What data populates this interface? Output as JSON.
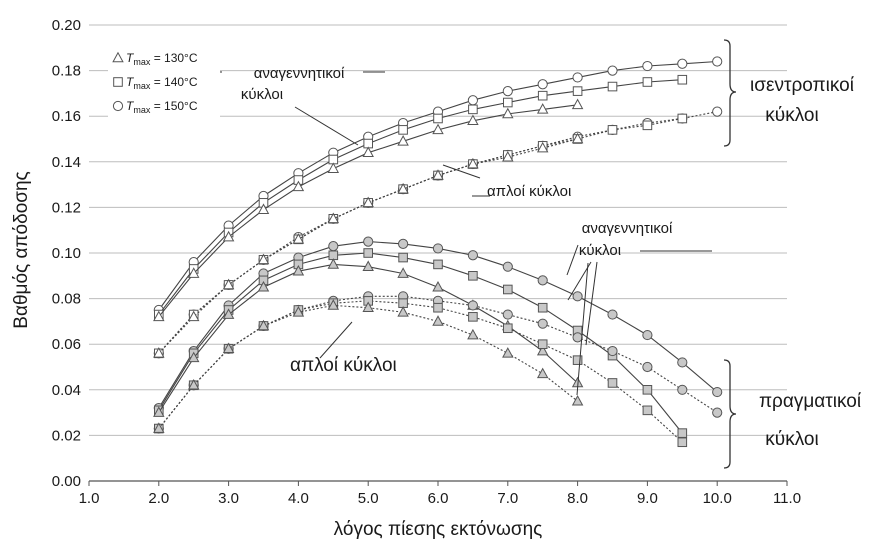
{
  "chart_data": {
    "type": "line",
    "xlabel": "λόγος πίεσης εκτόνωσης",
    "ylabel": "Βαθμός απόδοσης",
    "xlim": [
      1.0,
      11.0
    ],
    "ylim": [
      0.0,
      0.2
    ],
    "x_ticks": [
      "1.0",
      "2.0",
      "3.0",
      "4.0",
      "5.0",
      "6.0",
      "7.0",
      "8.0",
      "9.0",
      "10.0",
      "11.0"
    ],
    "y_ticks": [
      "0.00",
      "0.02",
      "0.04",
      "0.06",
      "0.08",
      "0.10",
      "0.12",
      "0.14",
      "0.16",
      "0.18",
      "0.20"
    ],
    "grid": "horizontal",
    "legend": {
      "position": "top-left",
      "entries": [
        {
          "marker": "triangle",
          "prefix": "T",
          "sub": "max",
          "value": " = 130°C"
        },
        {
          "marker": "square",
          "prefix": "T",
          "sub": "max",
          "value": " = 140°C"
        },
        {
          "marker": "circle",
          "prefix": "T",
          "sub": "max",
          "value": " = 150°C"
        }
      ]
    },
    "annotations": {
      "isentropic_regen": [
        "αναγεννητικοί",
        "κύκλοι"
      ],
      "isentropic_simple": "απλοί κύκλοι",
      "isentropic_group": [
        "ισεντροπικοί",
        "κύκλοι"
      ],
      "real_regen": [
        "αναγεννητικοί",
        "κύκλοι"
      ],
      "real_simple": "απλοί κύκλοι",
      "real_group": [
        "πραγματικοί",
        "κύκλοι"
      ]
    },
    "series": [
      {
        "group": "isentropic-regenerative",
        "marker": "circle",
        "style": "solid",
        "x": [
          2.0,
          2.5,
          3.0,
          3.5,
          4.0,
          4.5,
          5.0,
          5.5,
          6.0,
          6.5,
          7.0,
          7.5,
          8.0,
          8.5,
          9.0,
          9.5,
          10.0
        ],
        "y": [
          0.075,
          0.096,
          0.112,
          0.125,
          0.135,
          0.144,
          0.151,
          0.157,
          0.162,
          0.167,
          0.171,
          0.174,
          0.177,
          0.18,
          0.182,
          0.183,
          0.184
        ]
      },
      {
        "group": "isentropic-regenerative",
        "marker": "square",
        "style": "solid",
        "x": [
          2.0,
          2.5,
          3.0,
          3.5,
          4.0,
          4.5,
          5.0,
          5.5,
          6.0,
          6.5,
          7.0,
          7.5,
          8.0,
          8.5,
          9.0,
          9.5
        ],
        "y": [
          0.073,
          0.093,
          0.109,
          0.122,
          0.132,
          0.141,
          0.148,
          0.154,
          0.159,
          0.163,
          0.166,
          0.169,
          0.171,
          0.173,
          0.175,
          0.176
        ]
      },
      {
        "group": "isentropic-regenerative",
        "marker": "triangle",
        "style": "solid",
        "x": [
          2.0,
          2.5,
          3.0,
          3.5,
          4.0,
          4.5,
          5.0,
          5.5,
          6.0,
          6.5,
          7.0,
          7.5,
          8.0
        ],
        "y": [
          0.072,
          0.091,
          0.107,
          0.119,
          0.129,
          0.137,
          0.144,
          0.149,
          0.154,
          0.158,
          0.161,
          0.163,
          0.165
        ]
      },
      {
        "group": "isentropic-simple",
        "marker": "circle",
        "style": "dotted",
        "x": [
          2.0,
          2.5,
          3.0,
          3.5,
          4.0,
          4.5,
          5.0,
          5.5,
          6.0,
          6.5,
          7.0,
          7.5,
          8.0,
          8.5,
          9.0,
          9.5,
          10.0
        ],
        "y": [
          0.056,
          0.073,
          0.086,
          0.097,
          0.107,
          0.115,
          0.122,
          0.128,
          0.134,
          0.139,
          0.143,
          0.147,
          0.151,
          0.154,
          0.157,
          0.159,
          0.162
        ]
      },
      {
        "group": "isentropic-simple",
        "marker": "square",
        "style": "dotted",
        "x": [
          2.0,
          2.5,
          3.0,
          3.5,
          4.0,
          4.5,
          5.0,
          5.5,
          6.0,
          6.5,
          7.0,
          7.5,
          8.0,
          8.5,
          9.0,
          9.5
        ],
        "y": [
          0.056,
          0.073,
          0.086,
          0.097,
          0.106,
          0.115,
          0.122,
          0.128,
          0.134,
          0.139,
          0.143,
          0.147,
          0.15,
          0.154,
          0.156,
          0.159
        ]
      },
      {
        "group": "isentropic-simple",
        "marker": "triangle",
        "style": "dotted",
        "x": [
          2.0,
          2.5,
          3.0,
          3.5,
          4.0,
          4.5,
          5.0,
          5.5,
          6.0,
          6.5,
          7.0,
          7.5,
          8.0
        ],
        "y": [
          0.056,
          0.072,
          0.086,
          0.097,
          0.106,
          0.115,
          0.122,
          0.128,
          0.134,
          0.139,
          0.142,
          0.146,
          0.15
        ]
      },
      {
        "group": "real-regenerative",
        "marker": "circle",
        "style": "solid",
        "x": [
          2.0,
          2.5,
          3.0,
          3.5,
          4.0,
          4.5,
          5.0,
          5.5,
          6.0,
          6.5,
          7.0,
          7.5,
          8.0,
          8.5,
          9.0,
          9.5,
          10.0
        ],
        "y": [
          0.032,
          0.057,
          0.077,
          0.091,
          0.098,
          0.103,
          0.105,
          0.104,
          0.102,
          0.099,
          0.094,
          0.088,
          0.081,
          0.073,
          0.064,
          0.052,
          0.039
        ]
      },
      {
        "group": "real-regenerative",
        "marker": "square",
        "style": "solid",
        "x": [
          2.0,
          2.5,
          3.0,
          3.5,
          4.0,
          4.5,
          5.0,
          5.5,
          6.0,
          6.5,
          7.0,
          7.5,
          8.0,
          8.5,
          9.0,
          9.5
        ],
        "y": [
          0.031,
          0.056,
          0.075,
          0.088,
          0.095,
          0.099,
          0.1,
          0.098,
          0.095,
          0.09,
          0.084,
          0.076,
          0.066,
          0.055,
          0.04,
          0.021
        ]
      },
      {
        "group": "real-regenerative",
        "marker": "triangle",
        "style": "solid",
        "x": [
          2.0,
          2.5,
          3.0,
          3.5,
          4.0,
          4.5,
          5.0,
          5.5,
          6.0,
          6.5,
          7.0,
          7.5,
          8.0
        ],
        "y": [
          0.03,
          0.054,
          0.073,
          0.085,
          0.092,
          0.095,
          0.094,
          0.091,
          0.085,
          0.077,
          0.068,
          0.057,
          0.043
        ]
      },
      {
        "group": "real-simple",
        "marker": "circle",
        "style": "dotted",
        "x": [
          2.0,
          2.5,
          3.0,
          3.5,
          4.0,
          4.5,
          5.0,
          5.5,
          6.0,
          6.5,
          7.0,
          7.5,
          8.0,
          8.5,
          9.0,
          9.5,
          10.0
        ],
        "y": [
          0.023,
          0.042,
          0.058,
          0.068,
          0.075,
          0.079,
          0.081,
          0.081,
          0.079,
          0.077,
          0.073,
          0.069,
          0.063,
          0.057,
          0.05,
          0.04,
          0.03
        ]
      },
      {
        "group": "real-simple",
        "marker": "square",
        "style": "dotted",
        "x": [
          2.0,
          2.5,
          3.0,
          3.5,
          4.0,
          4.5,
          5.0,
          5.5,
          6.0,
          6.5,
          7.0,
          7.5,
          8.0,
          8.5,
          9.0,
          9.5
        ],
        "y": [
          0.023,
          0.042,
          0.058,
          0.068,
          0.075,
          0.078,
          0.079,
          0.078,
          0.076,
          0.072,
          0.067,
          0.06,
          0.053,
          0.043,
          0.031,
          0.017
        ]
      },
      {
        "group": "real-simple",
        "marker": "triangle",
        "style": "dotted",
        "x": [
          2.0,
          2.5,
          3.0,
          3.5,
          4.0,
          4.5,
          5.0,
          5.5,
          6.0,
          6.5,
          7.0,
          7.5,
          8.0
        ],
        "y": [
          0.023,
          0.042,
          0.058,
          0.068,
          0.074,
          0.077,
          0.076,
          0.074,
          0.07,
          0.064,
          0.056,
          0.047,
          0.035
        ]
      }
    ]
  },
  "colors": {
    "marker_fill_isentropic": "#ffffff",
    "marker_fill_real": "#c8c8c8",
    "line": "#444444",
    "grid": "#bdbdbd"
  }
}
